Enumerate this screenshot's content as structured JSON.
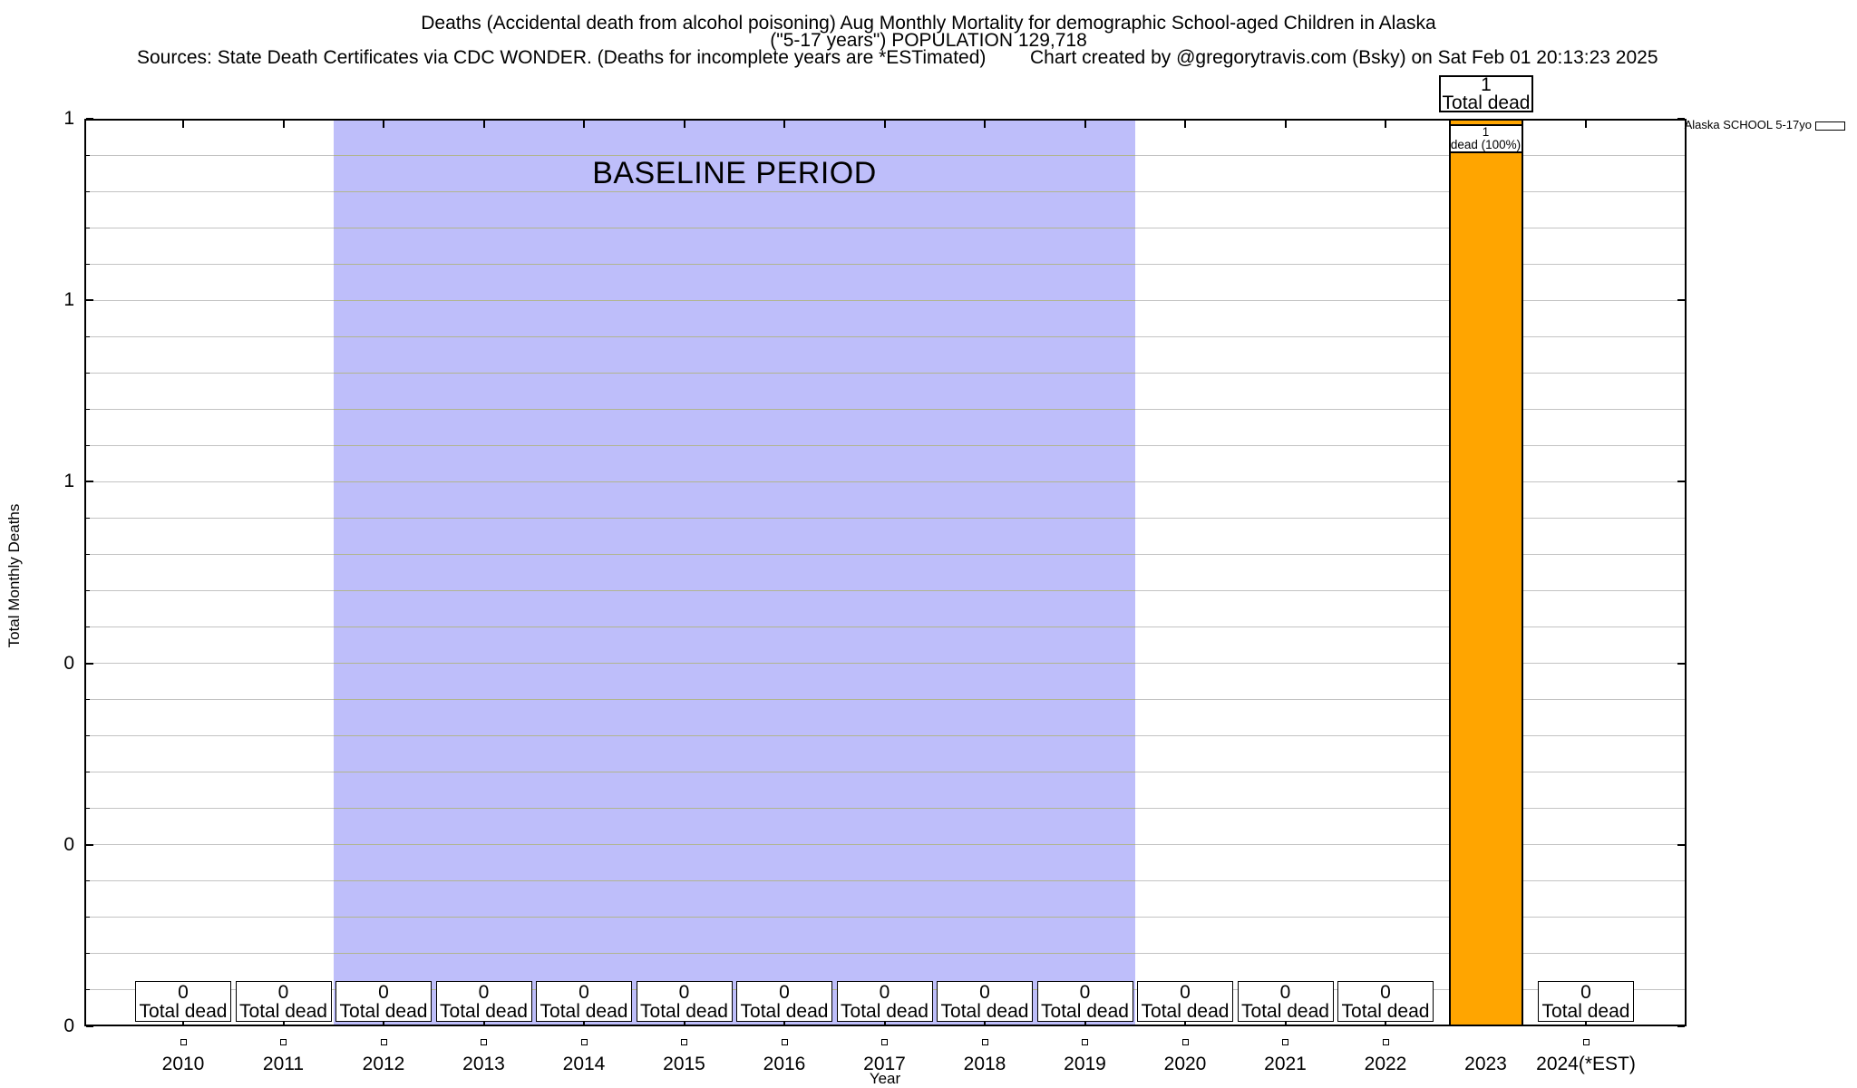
{
  "header": {
    "title_line1": "Deaths (Accidental death from alcohol poisoning) Aug Monthly Mortality for demographic School-aged Children in Alaska",
    "title_line2": "(\"5-17 years\") POPULATION 129,718",
    "sources": "Sources: State Death Certificates via CDC WONDER. (Deaths for incomplete years are *ESTimated)",
    "credit": "Chart created by @gregorytravis.com (Bsky) on Sat Feb 01 20:13:23 2025"
  },
  "axes": {
    "y_label": "Total Monthly Deaths",
    "x_label": "Year",
    "y_tick_labels": [
      "1",
      "1",
      "1",
      "0",
      "0",
      "0"
    ]
  },
  "baseline": {
    "label": "BASELINE PERIOD",
    "start_year": "2012",
    "end_year": "2019",
    "band_color": "#bebefa"
  },
  "legend": {
    "label": "Alaska SCHOOL 5-17yo",
    "swatch_color": "#ffa500"
  },
  "annotations": {
    "bar_top_box": {
      "value": "1",
      "label": "Total dead"
    },
    "bar_inner_box": {
      "value": "1",
      "label": "dead (100%)"
    }
  },
  "year_box": {
    "zero_value": "0",
    "label": "Total dead"
  },
  "colors": {
    "bar": "#ffa500",
    "gridline": "#c3c3c3",
    "gridline_over_band": "#b1b58f",
    "axis": "#000000"
  },
  "chart_data": {
    "type": "bar",
    "title": "Deaths (Accidental death from alcohol poisoning) Aug Monthly Mortality for demographic School-aged Children in Alaska (\"5-17 years\") POPULATION 129,718",
    "categories": [
      "2010",
      "2011",
      "2012",
      "2013",
      "2014",
      "2015",
      "2016",
      "2017",
      "2018",
      "2019",
      "2020",
      "2021",
      "2022",
      "2023",
      "2024(*EST)"
    ],
    "values": [
      0,
      0,
      0,
      0,
      0,
      0,
      0,
      0,
      0,
      0,
      0,
      0,
      0,
      1,
      0
    ],
    "series_name": "Alaska SCHOOL 5-17yo",
    "xlabel": "Year",
    "ylabel": "Total Monthly Deaths",
    "ylim": [
      0,
      1
    ],
    "y_major_tick_step": 0.2,
    "y_minor_grid_step": 0.04,
    "grid": "horizontal minor gridlines on",
    "legend_position": "top-right outside plot",
    "baseline_shaded_region": {
      "from": "2012",
      "to": "2019",
      "label": "BASELINE PERIOD"
    },
    "point_markers": "open squares below axis for every zero-value year",
    "bar_annotations": {
      "above": "1 / Total dead",
      "inside_top": "1 / dead (100%)"
    },
    "zero_year_annotation": "0 / Total dead box at base of each zero year"
  }
}
